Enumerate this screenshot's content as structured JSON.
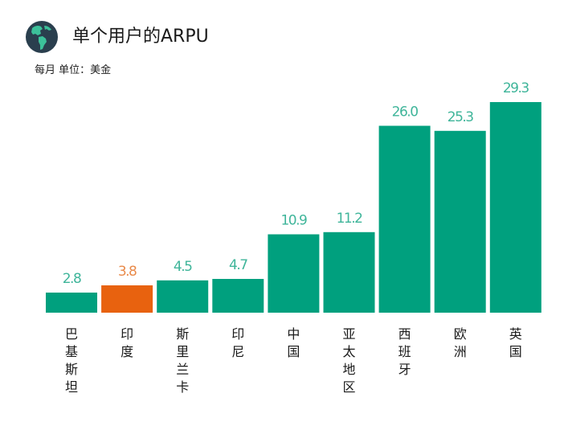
{
  "header": {
    "title": "单个用户的ARPU",
    "subtitle": "每月  单位：美金",
    "icon": "globe-icon"
  },
  "colors": {
    "bar": "#00a07e",
    "highlight": "#e8620f",
    "label": "#3fb59a",
    "highlight_label": "#e98a4a",
    "globe_ocean": "#2a3f4e",
    "globe_land": "#3cc19a"
  },
  "chart_data": {
    "type": "bar",
    "title": "单个用户的ARPU",
    "subtitle": "每月  单位：美金",
    "xlabel": "",
    "ylabel": "",
    "ylim": [
      0,
      29.3
    ],
    "grid": false,
    "legend": "none",
    "categories": [
      "巴基斯坦",
      "印度",
      "斯里兰卡",
      "印尼",
      "中国",
      "亚太地区",
      "西班牙",
      "欧洲",
      "英国"
    ],
    "values": [
      2.8,
      3.8,
      4.5,
      4.7,
      10.9,
      11.2,
      26.0,
      25.3,
      29.3
    ],
    "value_labels": [
      "2.8",
      "3.8",
      "4.5",
      "4.7",
      "10.9",
      "11.2",
      "26.0",
      "25.3",
      "29.3"
    ],
    "highlighted": [
      "印度"
    ]
  }
}
